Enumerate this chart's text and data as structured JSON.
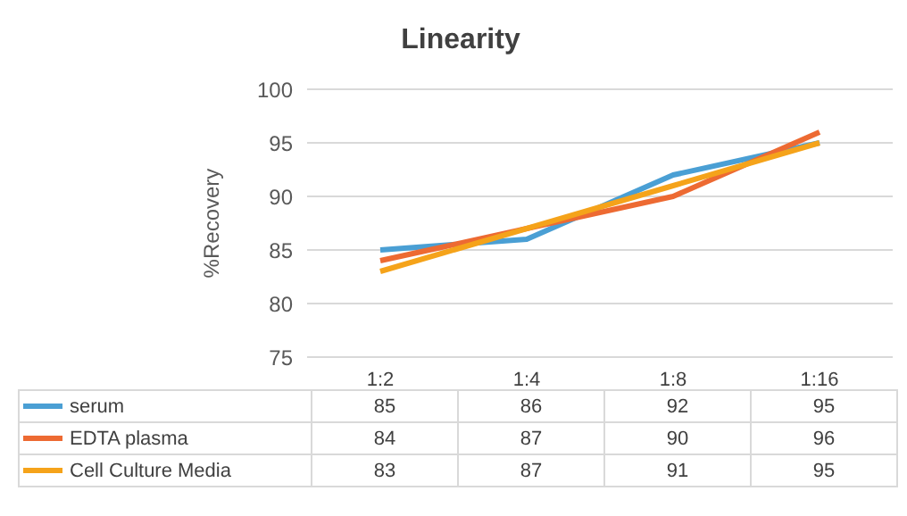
{
  "chart_data": {
    "type": "line",
    "title": "Linearity",
    "ylabel": "%Recovery",
    "categories": [
      "1:2",
      "1:4",
      "1:8",
      "1:16"
    ],
    "series": [
      {
        "name": "serum",
        "color": "#4a9fd4",
        "values": [
          85,
          86,
          92,
          95
        ]
      },
      {
        "name": "EDTA plasma",
        "color": "#ed6a32",
        "values": [
          84,
          87,
          90,
          96
        ]
      },
      {
        "name": "Cell Culture Media",
        "color": "#f5a31a",
        "values": [
          83,
          87,
          91,
          95
        ]
      }
    ],
    "ylim": [
      75,
      100
    ],
    "yticks": [
      75,
      80,
      85,
      90,
      95,
      100
    ],
    "grid": "y",
    "legend": "bottom",
    "data_labels": true,
    "marker": "none",
    "line_style": "solid"
  }
}
